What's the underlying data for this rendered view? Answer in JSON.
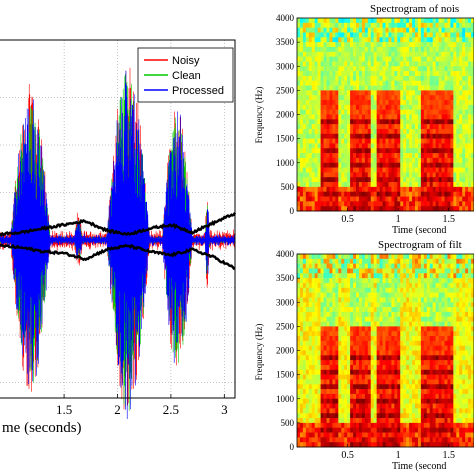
{
  "chart_data": [
    {
      "type": "line",
      "xlabel": "me (seconds)",
      "ylabel": "",
      "title": "",
      "xlim": [
        0.9,
        3.1
      ],
      "x_ticks": [
        1.5,
        2,
        2.5,
        3
      ],
      "x_tick_labels": [
        "1.5",
        "2",
        "2.5",
        "3"
      ],
      "grid": true,
      "legend_position": "top-right",
      "series": [
        {
          "name": "Noisy",
          "color": "#ff0000"
        },
        {
          "name": "Clean",
          "color": "#00cc00"
        },
        {
          "name": "Processed",
          "color": "#0000ff"
        }
      ],
      "bursts": [
        {
          "x": [
            1.0,
            1.37
          ],
          "y_top": 0.78,
          "y_bottom": 0.7
        },
        {
          "x": [
            1.9,
            2.3
          ],
          "y_top": 0.92,
          "y_bottom": 0.8
        },
        {
          "x": [
            2.42,
            2.7
          ],
          "y_top": 0.68,
          "y_bottom": 0.55
        },
        {
          "x": [
            1.6,
            1.67
          ],
          "y_top": 0.1,
          "y_bottom": 0.1
        },
        {
          "x": [
            2.82,
            2.86
          ],
          "y_top": 0.2,
          "y_bottom": 0.2
        }
      ],
      "envelope": {
        "color": "#000000",
        "x": [
          0.9,
          1.1,
          1.3,
          1.5,
          1.7,
          1.9,
          2.1,
          2.3,
          2.5,
          2.7,
          2.9,
          3.1
        ],
        "upper": [
          0.03,
          0.04,
          0.06,
          0.08,
          0.1,
          0.05,
          0.03,
          0.06,
          0.08,
          0.04,
          0.09,
          0.14
        ],
        "lower": [
          -0.03,
          -0.04,
          -0.06,
          -0.07,
          -0.1,
          -0.05,
          -0.03,
          -0.06,
          -0.08,
          -0.05,
          -0.09,
          -0.15
        ]
      }
    },
    {
      "type": "heatmap",
      "title": "Spectrogram of nois",
      "xlabel": "Time (second",
      "ylabel": "Frequency (Hz)",
      "ylim": [
        0,
        4000
      ],
      "y_ticks": [
        0,
        500,
        1000,
        1500,
        2000,
        2500,
        3000,
        3500,
        4000
      ],
      "y_tick_labels": [
        "0",
        "500",
        "1000",
        "1500",
        "2000",
        "2500",
        "3000",
        "3500",
        "4000"
      ],
      "x_tick_labels": [
        "0.5",
        "1",
        "1.5"
      ],
      "x_ticks": [
        0.5,
        1.0,
        1.5
      ],
      "xlim": [
        0,
        1.75
      ],
      "colormap": "jet"
    },
    {
      "type": "heatmap",
      "title": "Spectrogram of filt",
      "xlabel": "Time (second",
      "ylabel": "Frequency (Hz)",
      "ylim": [
        0,
        4000
      ],
      "y_ticks": [
        0,
        500,
        1000,
        1500,
        2000,
        2500,
        3000,
        3500,
        4000
      ],
      "y_tick_labels": [
        "0",
        "500",
        "1000",
        "1500",
        "2000",
        "2500",
        "3000",
        "3500",
        "4000"
      ],
      "x_tick_labels": [
        "0.5",
        "1",
        "1.5"
      ],
      "x_ticks": [
        0.5,
        1.0,
        1.5
      ],
      "xlim": [
        0,
        1.75
      ],
      "colormap": "jet"
    }
  ]
}
